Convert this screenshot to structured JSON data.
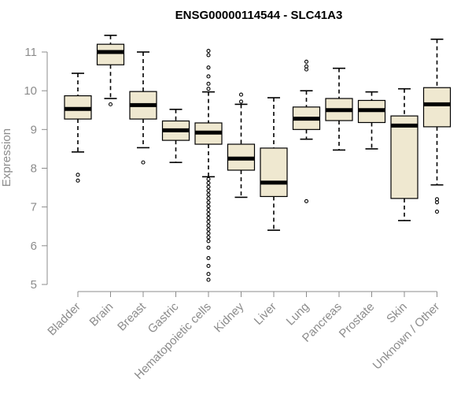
{
  "chart_data": {
    "type": "boxplot",
    "title": "ENSG00000114544 - SLC41A3",
    "xlabel": "",
    "ylabel": "Expression",
    "ylim": [
      5,
      11.5
    ],
    "yticks": [
      5,
      6,
      7,
      8,
      9,
      10,
      11
    ],
    "box_color": "#efe8d0",
    "categories": [
      "Bladder",
      "Brain",
      "Breast",
      "Gastric",
      "Hematopoietic cells",
      "Kidney",
      "Liver",
      "Lung",
      "Pancreas",
      "Prostate",
      "Skin",
      "Unknown / Other"
    ],
    "boxes": [
      {
        "low": 8.42,
        "q1": 9.27,
        "median": 9.53,
        "q3": 9.87,
        "high": 10.45,
        "outliers": [
          7.83,
          7.68
        ]
      },
      {
        "low": 9.8,
        "q1": 10.67,
        "median": 11.0,
        "q3": 11.2,
        "high": 11.43,
        "outliers": [
          9.65
        ]
      },
      {
        "low": 8.53,
        "q1": 9.27,
        "median": 9.63,
        "q3": 9.98,
        "high": 11.0,
        "outliers": [
          8.15
        ]
      },
      {
        "low": 8.15,
        "q1": 8.72,
        "median": 8.98,
        "q3": 9.22,
        "high": 9.52,
        "outliers": []
      },
      {
        "low": 7.78,
        "q1": 8.62,
        "median": 8.92,
        "q3": 9.17,
        "high": 9.97,
        "outliers": [
          11.03,
          10.92,
          10.6,
          10.37,
          10.18,
          10.05,
          7.72,
          7.62,
          7.52,
          7.42,
          7.32,
          7.22,
          7.12,
          7.02,
          6.92,
          6.82,
          6.72,
          6.62,
          6.52,
          6.42,
          6.32,
          6.22,
          6.12,
          5.95,
          5.68,
          5.48,
          5.27,
          5.12
        ]
      },
      {
        "low": 7.25,
        "q1": 7.95,
        "median": 8.25,
        "q3": 8.62,
        "high": 9.65,
        "outliers": [
          9.9,
          9.72
        ]
      },
      {
        "low": 6.4,
        "q1": 7.27,
        "median": 7.63,
        "q3": 8.52,
        "high": 9.82,
        "outliers": []
      },
      {
        "low": 8.75,
        "q1": 9.0,
        "median": 9.28,
        "q3": 9.58,
        "high": 10.0,
        "outliers": [
          10.75,
          10.63,
          10.55,
          7.15
        ]
      },
      {
        "low": 8.47,
        "q1": 9.23,
        "median": 9.5,
        "q3": 9.8,
        "high": 10.58,
        "outliers": []
      },
      {
        "low": 8.5,
        "q1": 9.18,
        "median": 9.5,
        "q3": 9.75,
        "high": 9.97,
        "outliers": []
      },
      {
        "low": 6.65,
        "q1": 7.22,
        "median": 9.1,
        "q3": 9.35,
        "high": 10.05,
        "outliers": []
      },
      {
        "low": 7.57,
        "q1": 9.07,
        "median": 9.65,
        "q3": 10.08,
        "high": 11.33,
        "outliers": [
          7.2,
          7.12,
          6.88
        ]
      }
    ]
  }
}
